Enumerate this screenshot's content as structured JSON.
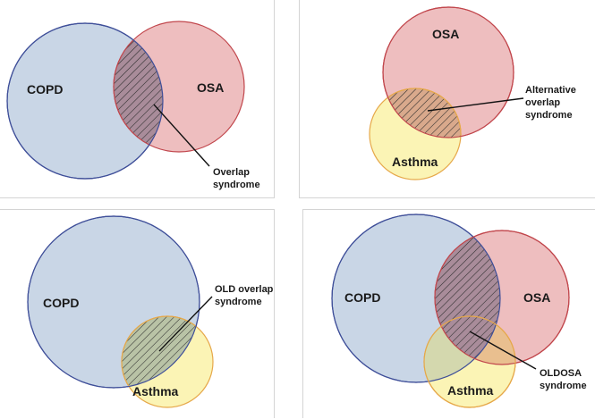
{
  "colors": {
    "copd_fill": "#c9d6e6",
    "copd_stroke": "#3f4f99",
    "osa_fill": "#eebebf",
    "osa_stroke": "#c1464c",
    "asthma_fill": "#fbf4b5",
    "asthma_stroke": "#e6a84a",
    "hatch": "#2a2a2a",
    "overlap_fill": "#a07e88"
  },
  "panels": [
    {
      "name": "overlap-syndrome",
      "circles": [
        "COPD",
        "OSA"
      ],
      "callout": [
        "Overlap",
        "syndrome"
      ]
    },
    {
      "name": "alternative-overlap-syndrome",
      "circles": [
        "OSA",
        "Asthma"
      ],
      "callout": [
        "Alternative",
        "overlap",
        "syndrome"
      ]
    },
    {
      "name": "old-overlap-syndrome",
      "circles": [
        "COPD",
        "Asthma"
      ],
      "callout": [
        "OLD overlap",
        "syndrome"
      ]
    },
    {
      "name": "oldosa-syndrome",
      "circles": [
        "COPD",
        "OSA",
        "Asthma"
      ],
      "callout": [
        "OLDOSA",
        "syndrome"
      ]
    }
  ]
}
